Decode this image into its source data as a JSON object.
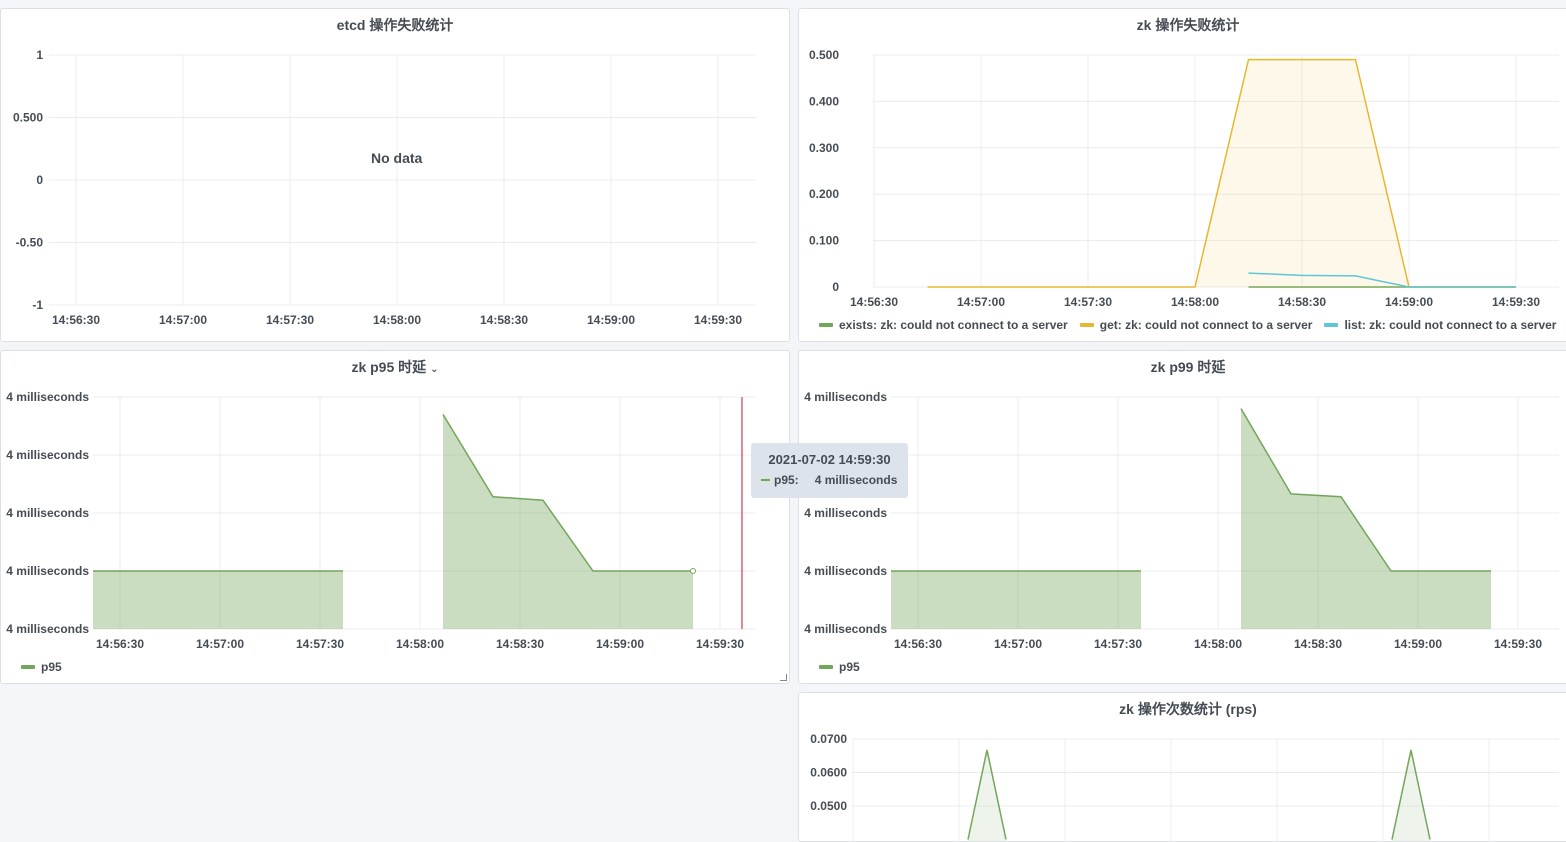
{
  "panels": {
    "etcd": {
      "title": "etcd 操作失败统计",
      "no_data": "No data"
    },
    "zk_fail": {
      "title": "zk 操作失败统计"
    },
    "p95": {
      "title": "zk p95 时延",
      "chevron": "⌄"
    },
    "p99": {
      "title": "zk p99 时延"
    },
    "rps": {
      "title": "zk 操作次数统计 (rps)"
    }
  },
  "tooltip": {
    "time": "2021-07-02 14:59:30",
    "series": "p95:",
    "value": "4 milliseconds"
  },
  "chart_data": [
    {
      "id": "etcd",
      "type": "line",
      "title": "etcd 操作失败统计",
      "x_ticks": [
        "14:56:30",
        "14:57:00",
        "14:57:30",
        "14:58:00",
        "14:58:30",
        "14:59:00",
        "14:59:30"
      ],
      "y_ticks": [
        "1",
        "0.500",
        "0",
        "-0.50",
        "-1"
      ],
      "ylim": [
        -1,
        1
      ],
      "series": [],
      "grid": true
    },
    {
      "id": "zk_fail",
      "type": "area",
      "title": "zk 操作失败统计",
      "x_ticks": [
        "14:56:30",
        "14:57:00",
        "14:57:30",
        "14:58:00",
        "14:58:30",
        "14:59:00",
        "14:59:30"
      ],
      "y_ticks": [
        "0.500",
        "0.400",
        "0.300",
        "0.200",
        "0.100",
        "0"
      ],
      "ylim": [
        0,
        0.5
      ],
      "xlim_seconds": [
        0,
        200
      ],
      "legend_position": "bottom-left",
      "series": [
        {
          "name": "exists: zk: could not connect to a server",
          "color": "#73a55a",
          "x": [
            105,
            135,
            150,
            165,
            180
          ],
          "values": [
            0,
            0,
            0,
            0,
            0
          ]
        },
        {
          "name": "get: zk: could not connect to a server",
          "color": "#e8b730",
          "x": [
            15,
            30,
            60,
            90,
            105,
            120,
            135,
            150,
            165,
            180
          ],
          "values": [
            0,
            0,
            0,
            0,
            0.49,
            0.49,
            0.49,
            0,
            0,
            0
          ]
        },
        {
          "name": "list: zk: could not connect to a server",
          "color": "#5fc5d8",
          "x": [
            105,
            120,
            135,
            150,
            165,
            180
          ],
          "values": [
            0.03,
            0.025,
            0.024,
            0,
            0,
            0
          ]
        }
      ],
      "grid": true
    },
    {
      "id": "p95",
      "type": "area",
      "title": "zk p95 时延",
      "x_ticks": [
        "14:56:30",
        "14:57:00",
        "14:57:30",
        "14:58:00",
        "14:58:30",
        "14:59:00",
        "14:59:30"
      ],
      "y_ticks": [
        "4 milliseconds",
        "4 milliseconds",
        "4 milliseconds",
        "4 milliseconds",
        "4 milliseconds"
      ],
      "ylim": [
        0,
        4
      ],
      "xlim_seconds": [
        -8,
        190
      ],
      "legend_position": "bottom-left",
      "series": [
        {
          "name": "p95",
          "color": "#73a55a",
          "segments": [
            {
              "x": [
                0,
                30,
                60,
                75
              ],
              "values": [
                1,
                1,
                1,
                1
              ]
            },
            {
              "x": [
                105,
                120,
                135,
                150,
                165,
                180
              ],
              "values": [
                3.7,
                2.28,
                2.22,
                1,
                1,
                1
              ]
            }
          ]
        }
      ],
      "grid": true
    },
    {
      "id": "p99",
      "type": "area",
      "title": "zk p99 时延",
      "x_ticks": [
        "14:56:30",
        "14:57:00",
        "14:57:30",
        "14:58:00",
        "14:58:30",
        "14:59:00",
        "14:59:30"
      ],
      "y_ticks": [
        "4 milliseconds",
        "4 milliseconds",
        "4 milliseconds",
        "4 milliseconds",
        "4 milliseconds"
      ],
      "ylim": [
        0,
        4
      ],
      "xlim_seconds": [
        -8,
        190
      ],
      "legend_position": "bottom-left",
      "series": [
        {
          "name": "p95",
          "color": "#73a55a",
          "segments": [
            {
              "x": [
                0,
                30,
                60,
                75
              ],
              "values": [
                1,
                1,
                1,
                1
              ]
            },
            {
              "x": [
                105,
                120,
                135,
                150,
                165,
                180
              ],
              "values": [
                3.8,
                2.33,
                2.28,
                1,
                1,
                1
              ]
            }
          ]
        }
      ],
      "grid": true
    },
    {
      "id": "rps",
      "type": "area",
      "title": "zk 操作次数统计 (rps)",
      "y_ticks": [
        "0.0700",
        "0.0600",
        "0.0500"
      ],
      "ylim": [
        0.04,
        0.07
      ],
      "series": [
        {
          "name": "",
          "color": "#73a55a",
          "x": [
            30,
            40,
            50,
            150,
            160,
            170
          ],
          "values": [
            0.04,
            0.0667,
            0.04,
            0.04,
            0.0667,
            0.04
          ]
        }
      ],
      "grid": true
    }
  ]
}
